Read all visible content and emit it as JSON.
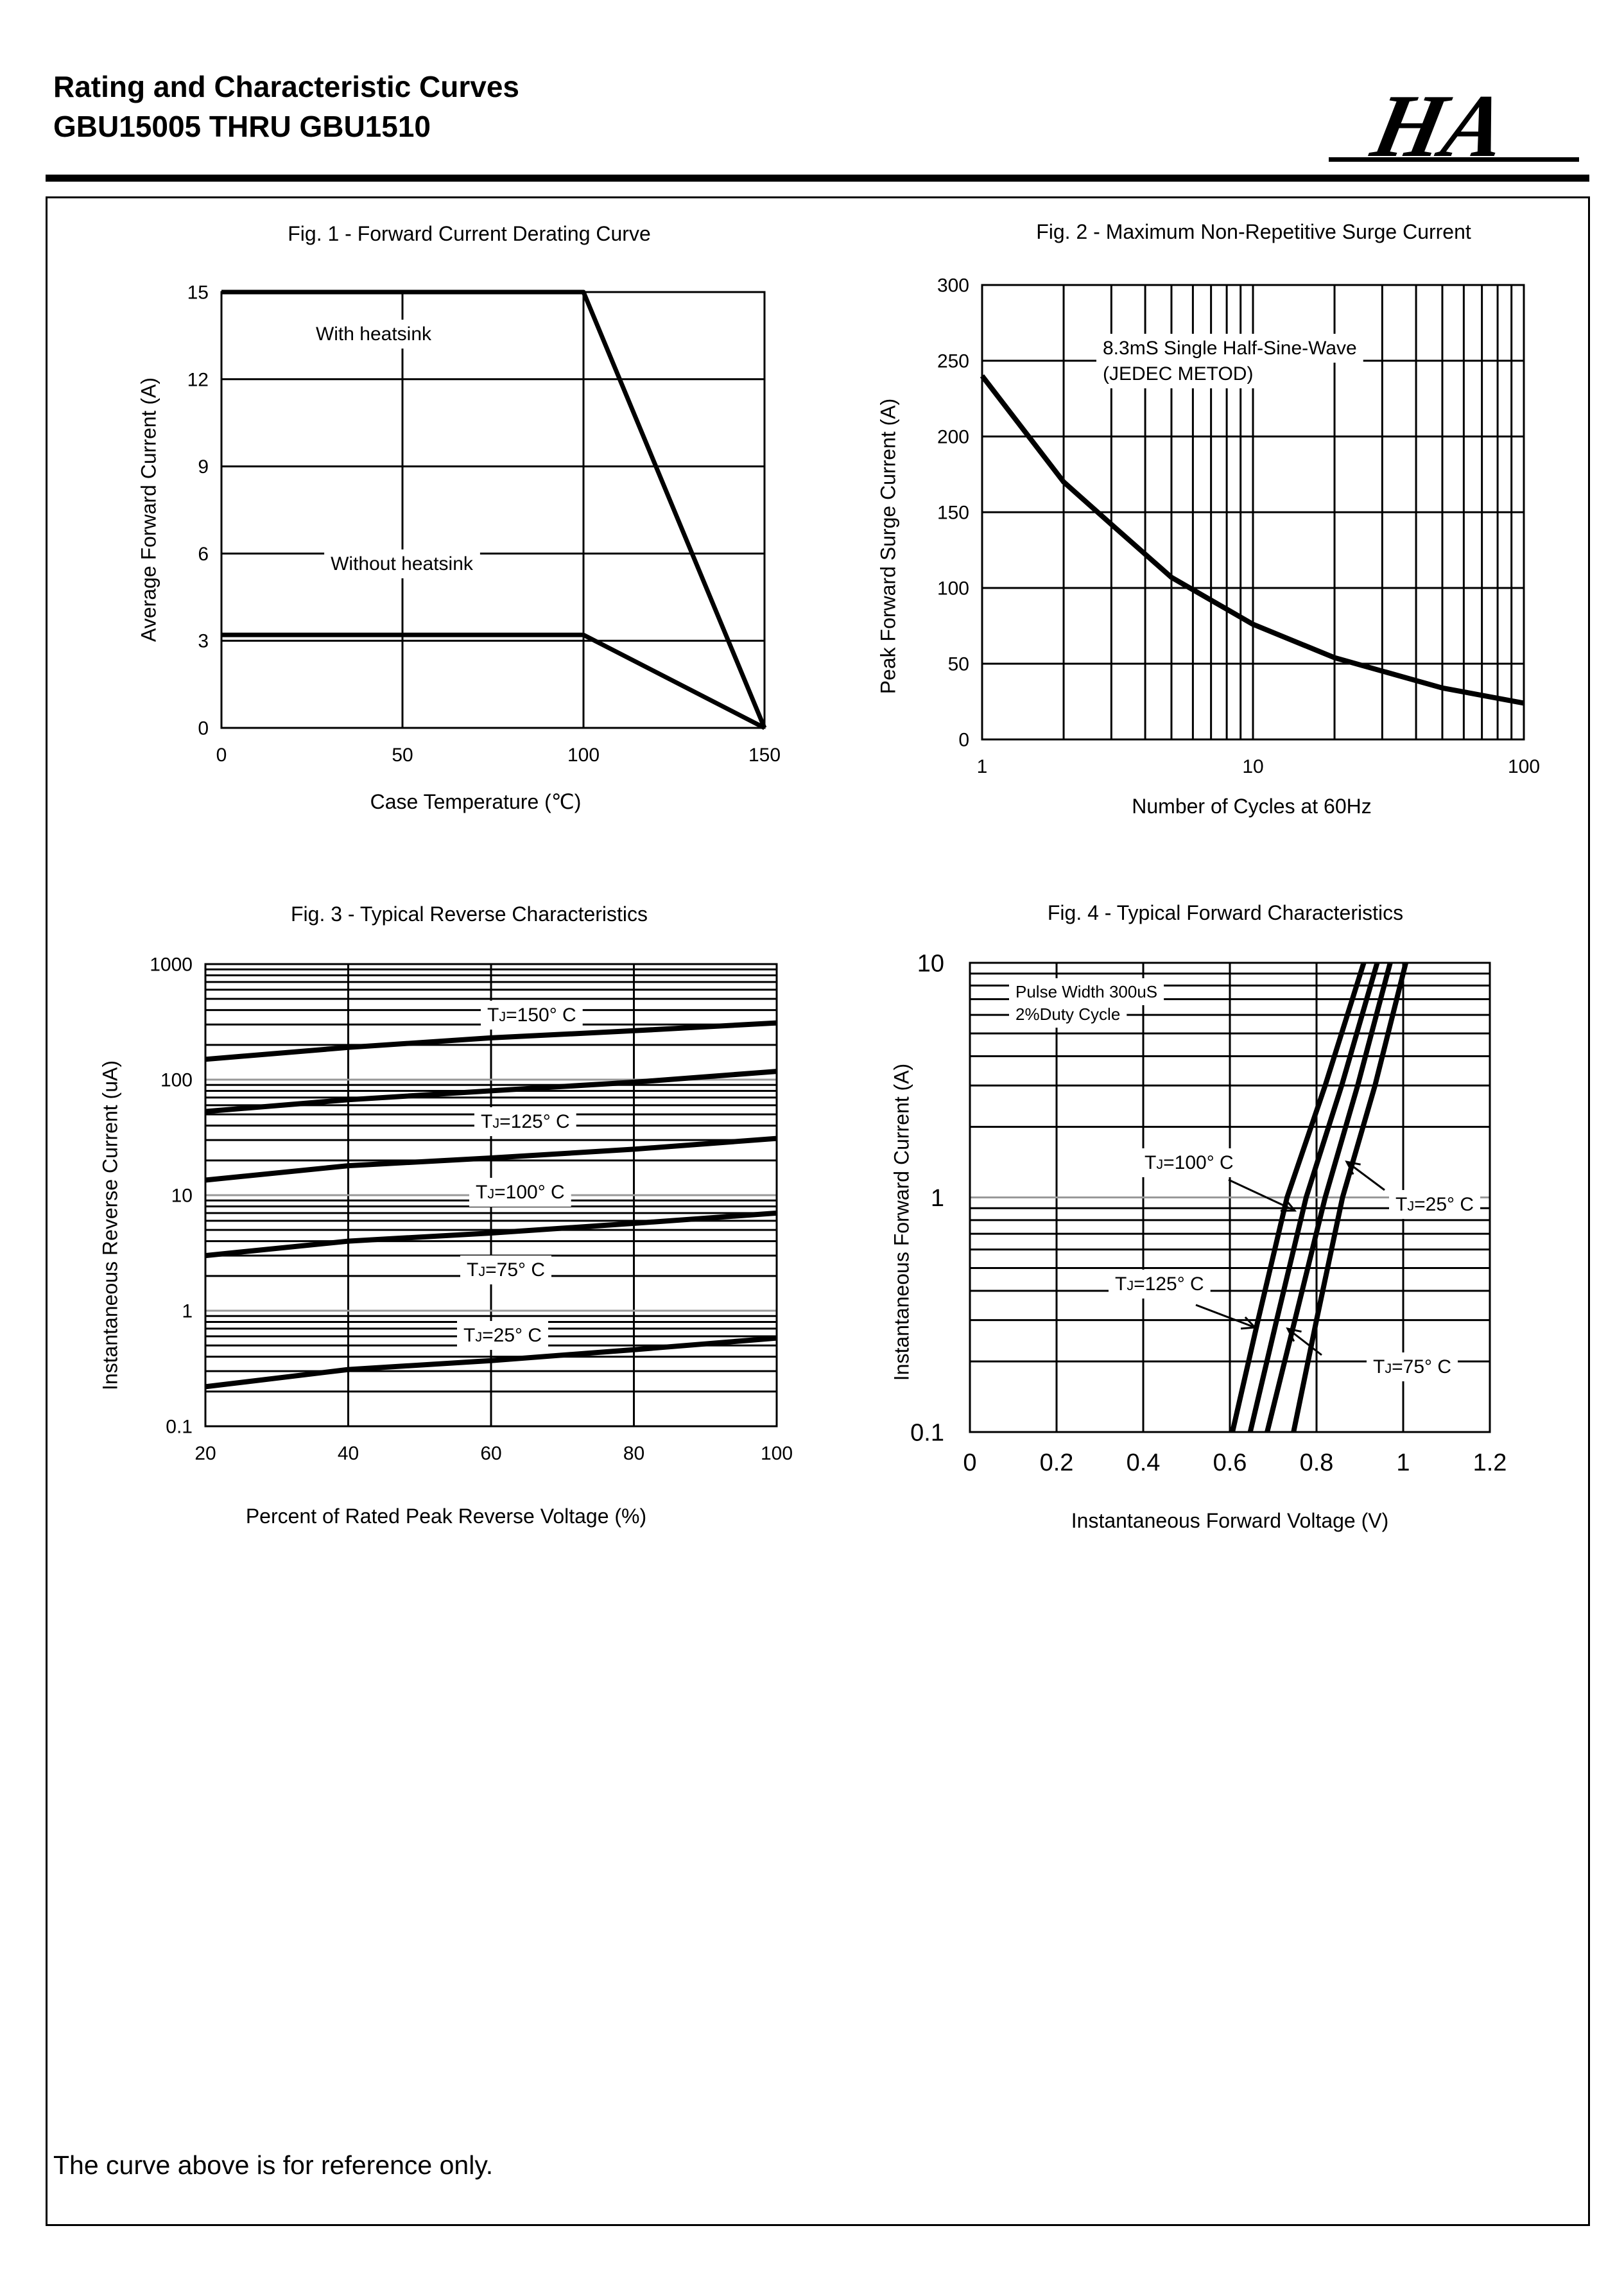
{
  "header": {
    "title_line1": "Rating and Characteristic Curves",
    "title_line2": "GBU15005 THRU GBU1510",
    "logo_text": "HA"
  },
  "footer": "The curve above is for reference only.",
  "colors": {
    "ink": "#000000",
    "decade_grid": "#999999",
    "background": "#ffffff"
  },
  "chart_data": [
    {
      "type": "line",
      "title": "Fig. 1 - Forward Current Derating Curve",
      "xlabel": "Case Temperature (℃)",
      "ylabel": "Average Forward Current (A)",
      "xscale": "linear",
      "yscale": "linear",
      "xlim": [
        0,
        150
      ],
      "ylim": [
        0,
        15
      ],
      "xticks": [
        "0",
        "50",
        "100",
        "150"
      ],
      "yticks": [
        "0",
        "3",
        "6",
        "9",
        "12",
        "15"
      ],
      "grid": true,
      "annotations": [
        "With heatsink",
        "Without heatsink"
      ],
      "series": [
        {
          "name": "With heatsink",
          "x": [
            0,
            100,
            150
          ],
          "y": [
            15,
            15,
            0
          ]
        },
        {
          "name": "Without heatsink",
          "x": [
            0,
            100,
            150
          ],
          "y": [
            3.2,
            3.2,
            0
          ]
        }
      ]
    },
    {
      "type": "line",
      "title": "Fig. 2 - Maximum Non-Repetitive Surge Current",
      "xlabel": "Number of Cycles at 60Hz",
      "ylabel": "Peak Forward Surge Current (A)",
      "xscale": "log",
      "yscale": "linear",
      "xlim": [
        1,
        100
      ],
      "ylim": [
        0,
        300
      ],
      "xticks": [
        "1",
        "10",
        "100"
      ],
      "yticks": [
        "0",
        "50",
        "100",
        "150",
        "200",
        "250",
        "300"
      ],
      "grid": true,
      "annotations": [
        "8.3mS Single Half-Sine-Wave",
        "(JEDEC METOD)"
      ],
      "series": [
        {
          "x": [
            1,
            2,
            3,
            5,
            10,
            20,
            50,
            100
          ],
          "y": [
            240,
            170,
            142,
            107,
            76,
            54,
            34,
            24
          ]
        }
      ]
    },
    {
      "type": "line",
      "title": "Fig. 3 - Typical Reverse Characteristics",
      "xlabel": "Percent of Rated Peak Reverse Voltage (%)",
      "ylabel": "Instantaneous Reverse Current (uA)",
      "xscale": "linear",
      "yscale": "log",
      "xlim": [
        20,
        100
      ],
      "ylim": [
        0.1,
        1000
      ],
      "xticks": [
        "20",
        "40",
        "60",
        "80",
        "100"
      ],
      "yticks": [
        "0.1",
        "1",
        "10",
        "100",
        "1000"
      ],
      "grid": true,
      "series": [
        {
          "name": "TJ=150° C",
          "x": [
            20,
            40,
            60,
            80,
            100
          ],
          "y": [
            150,
            190,
            230,
            265,
            310
          ]
        },
        {
          "name": "TJ=125° C",
          "x": [
            20,
            40,
            60,
            80,
            100
          ],
          "y": [
            53,
            67,
            80,
            95,
            118
          ]
        },
        {
          "name": "TJ=100° C",
          "x": [
            20,
            40,
            60,
            80,
            100
          ],
          "y": [
            13.5,
            18,
            21,
            25,
            31
          ]
        },
        {
          "name": "TJ=75° C",
          "x": [
            20,
            40,
            60,
            80,
            100
          ],
          "y": [
            3,
            4,
            4.7,
            5.7,
            7
          ]
        },
        {
          "name": "TJ=25° C",
          "x": [
            20,
            40,
            60,
            80,
            100
          ],
          "y": [
            0.22,
            0.31,
            0.37,
            0.46,
            0.58
          ]
        }
      ]
    },
    {
      "type": "line",
      "title": "Fig. 4 - Typical Forward Characteristics",
      "xlabel": "Instantaneous Forward Voltage (V)",
      "ylabel": "Instantaneous Forward Current (A)",
      "xscale": "linear",
      "yscale": "log",
      "xlim": [
        0,
        1.2
      ],
      "ylim": [
        0.1,
        10
      ],
      "xticks": [
        "0",
        "0.2",
        "0.4",
        "0.6",
        "0.8",
        "1",
        "1.2"
      ],
      "yticks": [
        "0.1",
        "1",
        "10"
      ],
      "grid": true,
      "annotations": [
        "Pulse Width 300uS",
        "2%Duty Cycle"
      ],
      "series": [
        {
          "name": "TJ=125° C",
          "x": [
            0.606,
            0.665,
            0.732,
            0.82,
            0.909
          ],
          "y": [
            0.1,
            0.3,
            1,
            3,
            10
          ]
        },
        {
          "name": "TJ=100° C",
          "x": [
            0.647,
            0.708,
            0.776,
            0.858,
            0.94
          ],
          "y": [
            0.1,
            0.3,
            1,
            3,
            10
          ]
        },
        {
          "name": "TJ=75° C",
          "x": [
            0.686,
            0.75,
            0.82,
            0.895,
            0.97
          ],
          "y": [
            0.1,
            0.3,
            1,
            3,
            10
          ]
        },
        {
          "name": "TJ=25° C",
          "x": [
            0.747,
            0.8,
            0.86,
            0.935,
            1.006
          ],
          "y": [
            0.1,
            0.3,
            1,
            3,
            10
          ]
        }
      ]
    }
  ]
}
